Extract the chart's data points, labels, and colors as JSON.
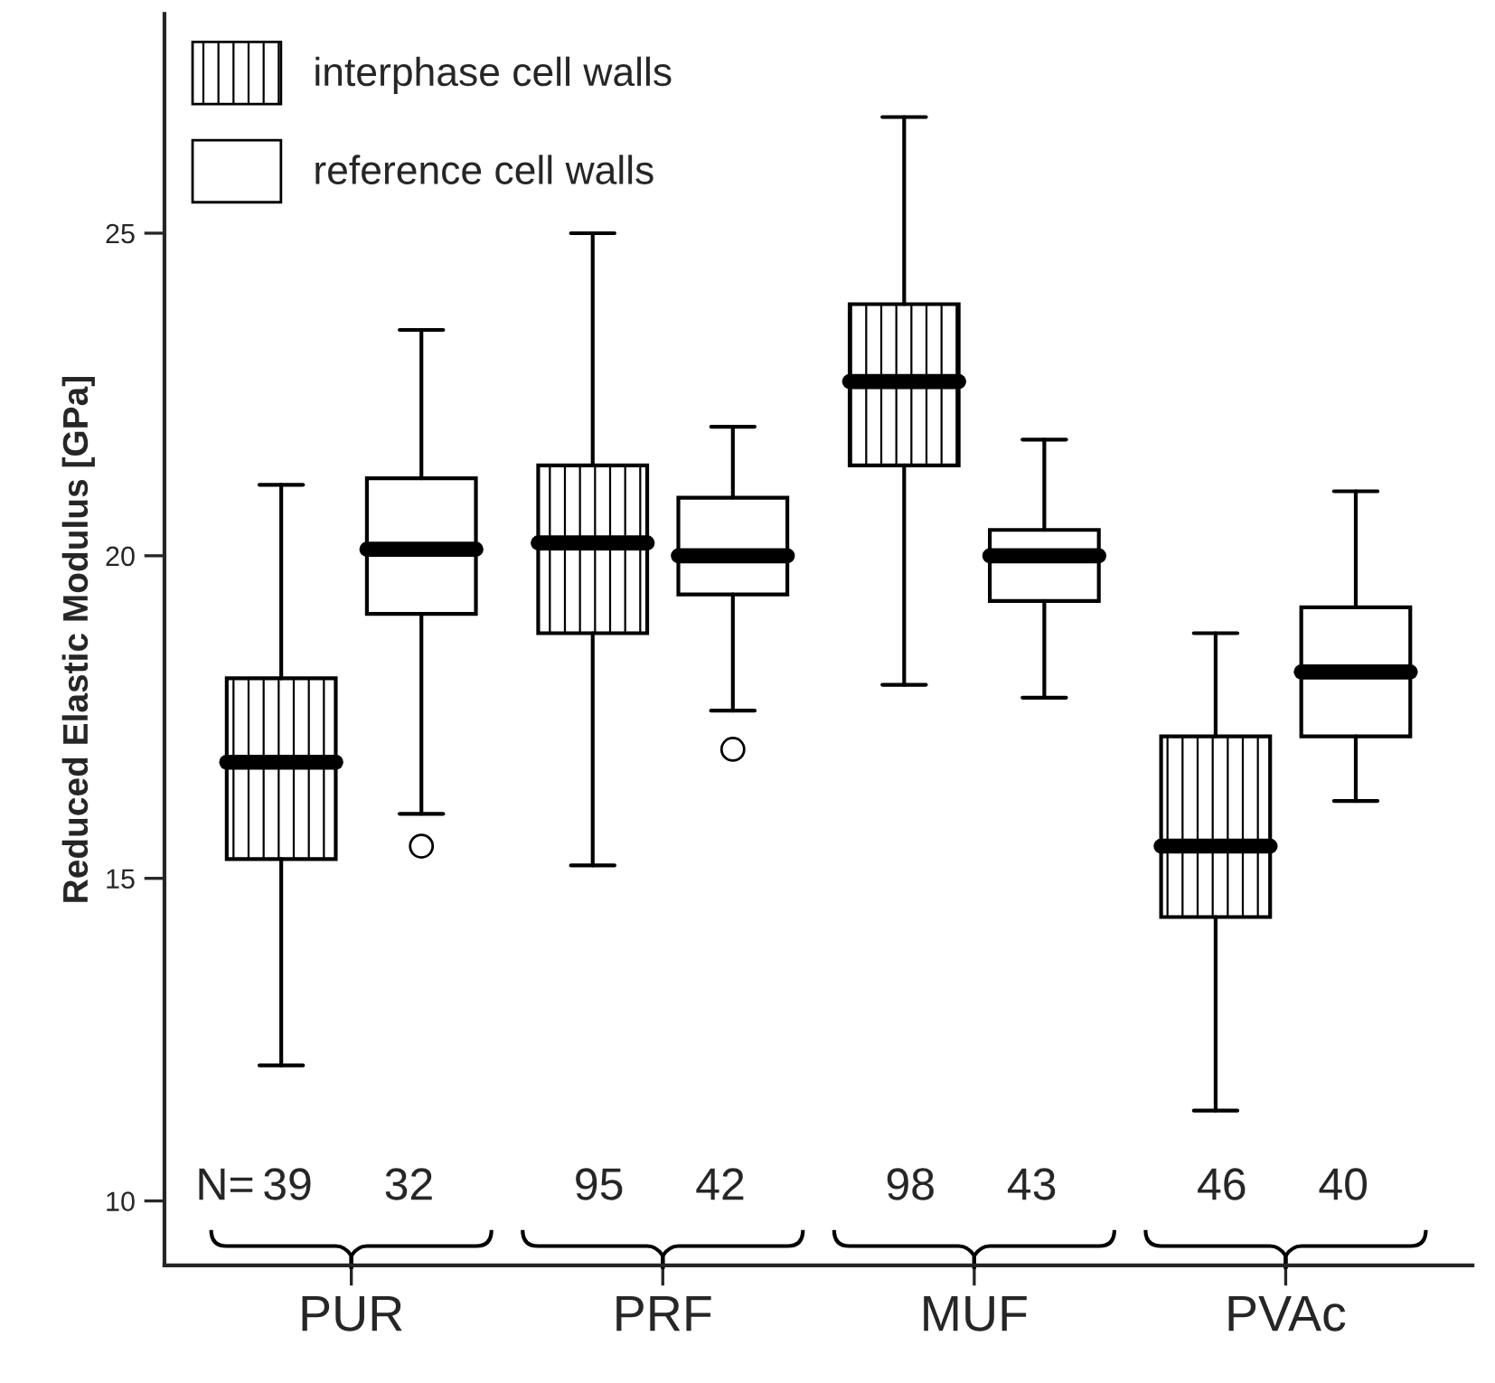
{
  "chart_data": {
    "type": "box",
    "ylabel": "Reduced Elastic Modulus [GPa]",
    "categories": [
      "PUR",
      "PRF",
      "MUF",
      "PVAc"
    ],
    "ylim": [
      9,
      28.4
    ],
    "yticks": [
      10,
      15,
      20,
      25
    ],
    "grid": false,
    "legend": "top left",
    "series": [
      {
        "name": "interphase cell walls",
        "color": "#ffffff",
        "boxes": [
          {
            "low": 12.1,
            "q1": 15.3,
            "median": 16.8,
            "q3": 18.1,
            "high": 21.1
          },
          {
            "low": 15.2,
            "q1": 18.8,
            "median": 20.2,
            "q3": 21.4,
            "high": 25.0
          },
          {
            "low": 18.0,
            "q1": 21.4,
            "median": 22.7,
            "q3": 23.9,
            "high": 26.8
          },
          {
            "low": 11.4,
            "q1": 14.4,
            "median": 15.5,
            "q3": 17.2,
            "high": 18.8
          }
        ]
      },
      {
        "name": "reference cell walls",
        "color": "#ffffff",
        "boxes": [
          {
            "low": 16.0,
            "q1": 19.1,
            "median": 20.1,
            "q3": 21.2,
            "high": 23.5,
            "outliers": [
              15.5
            ]
          },
          {
            "low": 17.6,
            "q1": 19.4,
            "median": 20.0,
            "q3": 20.9,
            "high": 22.0,
            "outliers": [
              17.0
            ]
          },
          {
            "low": 17.8,
            "q1": 19.3,
            "median": 20.0,
            "q3": 20.4,
            "high": 21.8
          },
          {
            "low": 16.2,
            "q1": 17.2,
            "median": 18.2,
            "q3": 19.2,
            "high": 21.0
          }
        ]
      }
    ],
    "annotations": [
      "N=",
      "39",
      "32",
      "95",
      "42",
      "98",
      "43",
      "46",
      "40"
    ]
  }
}
